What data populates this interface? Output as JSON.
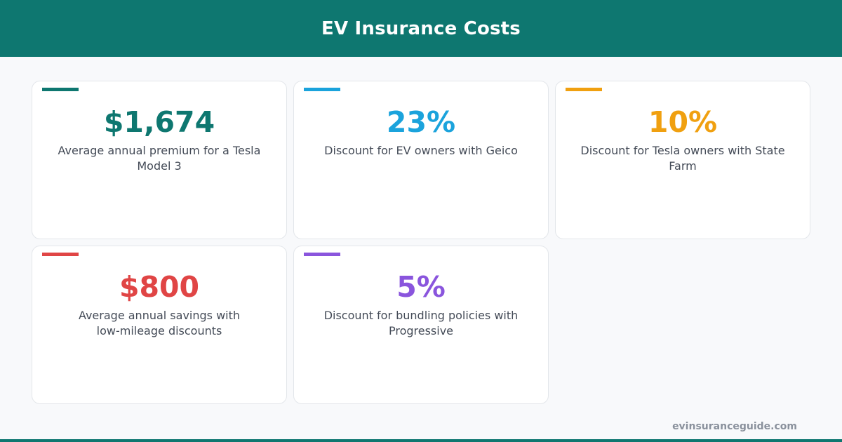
{
  "header": {
    "title": "EV Insurance Costs"
  },
  "cards": [
    {
      "stat": "$1,674",
      "description": "Average annual premium for a Tesla Model 3",
      "color": "#0e7770"
    },
    {
      "stat": "23%",
      "description": "Discount for EV owners with Geico",
      "color": "#1ba3dc"
    },
    {
      "stat": "10%",
      "description": "Discount for Tesla owners with State Farm",
      "color": "#f0a010"
    },
    {
      "stat": "$800",
      "description": "Average annual savings with low-mileage discounts",
      "color": "#e04545"
    },
    {
      "stat": "5%",
      "description": "Discount for bundling policies with Progressive",
      "color": "#8a55dd"
    }
  ],
  "footer": {
    "site": "evinsuranceguide.com"
  }
}
